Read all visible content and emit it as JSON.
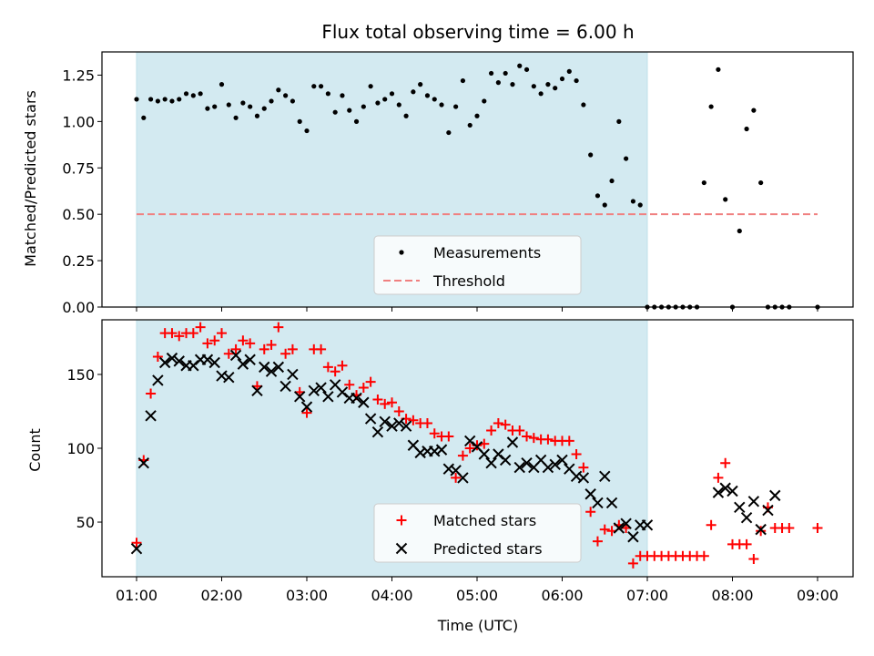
{
  "chart_data": [
    {
      "type": "scatter",
      "title": "Flux total observing time = 6.00 h",
      "xlabel": "",
      "ylabel": "Matched/Predicted stars",
      "ylim": [
        0,
        1.375
      ],
      "yticks": [
        "0.00",
        "0.25",
        "0.50",
        "0.75",
        "1.00",
        "1.25"
      ],
      "shaded_region": {
        "from": "01:00",
        "to": "07:00",
        "color": "#d3eaf1"
      },
      "threshold": {
        "name": "Threshold",
        "value": 0.5,
        "from": "01:00",
        "to": "09:00",
        "color": "#f08080"
      },
      "legend": {
        "position": "lower-center",
        "entries": [
          "Measurements",
          "Threshold"
        ]
      },
      "series": [
        {
          "name": "Measurements",
          "color": "#000000",
          "marker": "dot",
          "x": [
            "01:00",
            "01:05",
            "01:10",
            "01:15",
            "01:20",
            "01:25",
            "01:30",
            "01:35",
            "01:40",
            "01:45",
            "01:50",
            "01:55",
            "02:00",
            "02:05",
            "02:10",
            "02:15",
            "02:20",
            "02:25",
            "02:30",
            "02:35",
            "02:40",
            "02:45",
            "02:50",
            "02:55",
            "03:00",
            "03:05",
            "03:10",
            "03:15",
            "03:20",
            "03:25",
            "03:30",
            "03:35",
            "03:40",
            "03:45",
            "03:50",
            "03:55",
            "04:00",
            "04:05",
            "04:10",
            "04:15",
            "04:20",
            "04:25",
            "04:30",
            "04:35",
            "04:40",
            "04:45",
            "04:50",
            "04:55",
            "05:00",
            "05:05",
            "05:10",
            "05:15",
            "05:20",
            "05:25",
            "05:30",
            "05:35",
            "05:40",
            "05:45",
            "05:50",
            "05:55",
            "06:00",
            "06:05",
            "06:10",
            "06:15",
            "06:20",
            "06:25",
            "06:30",
            "06:35",
            "06:40",
            "06:45",
            "06:50",
            "06:55",
            "07:00",
            "07:05",
            "07:10",
            "07:15",
            "07:20",
            "07:25",
            "07:30",
            "07:35",
            "07:40",
            "07:45",
            "07:50",
            "07:55",
            "08:00",
            "08:05",
            "08:10",
            "08:15",
            "08:20",
            "08:25",
            "08:30",
            "08:35",
            "08:40",
            "09:00"
          ],
          "values": [
            1.12,
            1.02,
            1.12,
            1.11,
            1.12,
            1.11,
            1.12,
            1.15,
            1.14,
            1.15,
            1.07,
            1.08,
            1.2,
            1.09,
            1.02,
            1.1,
            1.08,
            1.03,
            1.07,
            1.11,
            1.17,
            1.14,
            1.11,
            1.0,
            0.95,
            1.19,
            1.19,
            1.15,
            1.05,
            1.14,
            1.06,
            1.0,
            1.08,
            1.19,
            1.1,
            1.12,
            1.15,
            1.09,
            1.03,
            1.16,
            1.2,
            1.14,
            1.12,
            1.09,
            0.94,
            1.08,
            1.22,
            0.98,
            1.03,
            1.11,
            1.26,
            1.21,
            1.26,
            1.2,
            1.3,
            1.28,
            1.19,
            1.15,
            1.2,
            1.18,
            1.23,
            1.27,
            1.22,
            1.09,
            0.82,
            0.6,
            0.55,
            0.68,
            1.0,
            0.8,
            0.57,
            0.55,
            0.0,
            0.0,
            0.0,
            0.0,
            0.0,
            0.0,
            0.0,
            0.0,
            0.67,
            1.08,
            1.28,
            0.58,
            0.0,
            0.41,
            0.96,
            1.06,
            0.67,
            0.0,
            0.0,
            0.0,
            0.0,
            0.0
          ]
        }
      ]
    },
    {
      "type": "scatter",
      "title": "",
      "xlabel": "Time (UTC)",
      "ylabel": "Count",
      "ylim": [
        13,
        187
      ],
      "yticks": [
        "50",
        "100",
        "150"
      ],
      "xticks": [
        "01:00",
        "02:00",
        "03:00",
        "04:00",
        "05:00",
        "06:00",
        "07:00",
        "08:00",
        "09:00"
      ],
      "shaded_region": {
        "from": "01:00",
        "to": "07:00",
        "color": "#d3eaf1"
      },
      "legend": {
        "position": "lower-center",
        "entries": [
          "Matched stars",
          "Predicted stars"
        ]
      },
      "series": [
        {
          "name": "Matched stars",
          "color": "#ff0000",
          "marker": "plus",
          "x": [
            "01:00",
            "01:05",
            "01:10",
            "01:15",
            "01:20",
            "01:25",
            "01:30",
            "01:35",
            "01:40",
            "01:45",
            "01:50",
            "01:55",
            "02:00",
            "02:05",
            "02:10",
            "02:15",
            "02:20",
            "02:25",
            "02:30",
            "02:35",
            "02:40",
            "02:45",
            "02:50",
            "02:55",
            "03:00",
            "03:05",
            "03:10",
            "03:15",
            "03:20",
            "03:25",
            "03:30",
            "03:35",
            "03:40",
            "03:45",
            "03:50",
            "03:55",
            "04:00",
            "04:05",
            "04:10",
            "04:15",
            "04:20",
            "04:25",
            "04:30",
            "04:35",
            "04:40",
            "04:45",
            "04:50",
            "04:55",
            "05:00",
            "05:05",
            "05:10",
            "05:15",
            "05:20",
            "05:25",
            "05:30",
            "05:35",
            "05:40",
            "05:45",
            "05:50",
            "05:55",
            "06:00",
            "06:05",
            "06:10",
            "06:15",
            "06:20",
            "06:25",
            "06:30",
            "06:35",
            "06:40",
            "06:45",
            "06:50",
            "06:55",
            "07:00",
            "07:05",
            "07:10",
            "07:15",
            "07:20",
            "07:25",
            "07:30",
            "07:35",
            "07:40",
            "07:45",
            "07:50",
            "07:55",
            "08:00",
            "08:05",
            "08:10",
            "08:15",
            "08:20",
            "08:25",
            "08:30",
            "08:35",
            "08:40",
            "09:00"
          ],
          "values": [
            36,
            92,
            137,
            162,
            178,
            178,
            176,
            178,
            178,
            182,
            171,
            173,
            178,
            164,
            167,
            173,
            171,
            142,
            167,
            170,
            182,
            164,
            167,
            138,
            124,
            167,
            167,
            155,
            152,
            156,
            143,
            136,
            141,
            145,
            133,
            130,
            131,
            125,
            120,
            119,
            117,
            117,
            110,
            108,
            108,
            80,
            95,
            100,
            102,
            103,
            112,
            117,
            116,
            112,
            112,
            108,
            107,
            106,
            106,
            105,
            105,
            105,
            96,
            87,
            57,
            37,
            45,
            44,
            48,
            46,
            22,
            27,
            27,
            27,
            27,
            27,
            27,
            27,
            27,
            27,
            27,
            48,
            80,
            90,
            35,
            35,
            35,
            25,
            44,
            60,
            46,
            46,
            46,
            46
          ]
        },
        {
          "name": "Predicted stars",
          "color": "#000000",
          "marker": "x",
          "x": [
            "01:00",
            "01:05",
            "01:10",
            "01:15",
            "01:20",
            "01:25",
            "01:30",
            "01:35",
            "01:40",
            "01:45",
            "01:50",
            "01:55",
            "02:00",
            "02:05",
            "02:10",
            "02:15",
            "02:20",
            "02:25",
            "02:30",
            "02:35",
            "02:40",
            "02:45",
            "02:50",
            "02:55",
            "03:00",
            "03:05",
            "03:10",
            "03:15",
            "03:20",
            "03:25",
            "03:30",
            "03:35",
            "03:40",
            "03:45",
            "03:50",
            "03:55",
            "04:00",
            "04:05",
            "04:10",
            "04:15",
            "04:20",
            "04:25",
            "04:30",
            "04:35",
            "04:40",
            "04:45",
            "04:50",
            "04:55",
            "05:00",
            "05:05",
            "05:10",
            "05:15",
            "05:20",
            "05:25",
            "05:30",
            "05:35",
            "05:40",
            "05:45",
            "05:50",
            "05:55",
            "06:00",
            "06:05",
            "06:10",
            "06:15",
            "06:20",
            "06:25",
            "06:30",
            "06:35",
            "06:40",
            "06:45",
            "06:50",
            "06:55",
            "07:00",
            "07:50",
            "07:55",
            "08:00",
            "08:05",
            "08:10",
            "08:15",
            "08:20",
            "08:25",
            "08:30"
          ],
          "values": [
            32,
            90,
            122,
            146,
            158,
            161,
            159,
            156,
            156,
            160,
            160,
            158,
            149,
            148,
            163,
            157,
            160,
            139,
            155,
            152,
            155,
            142,
            150,
            135,
            128,
            139,
            141,
            135,
            143,
            138,
            134,
            134,
            131,
            120,
            111,
            118,
            115,
            117,
            115,
            102,
            97,
            98,
            98,
            99,
            86,
            85,
            80,
            105,
            101,
            96,
            90,
            96,
            92,
            104,
            87,
            90,
            87,
            92,
            87,
            89,
            92,
            86,
            81,
            80,
            69,
            63,
            81,
            63,
            46,
            49,
            40,
            48,
            48,
            70,
            73,
            71,
            60,
            53,
            64,
            45,
            58,
            68
          ]
        }
      ]
    }
  ]
}
